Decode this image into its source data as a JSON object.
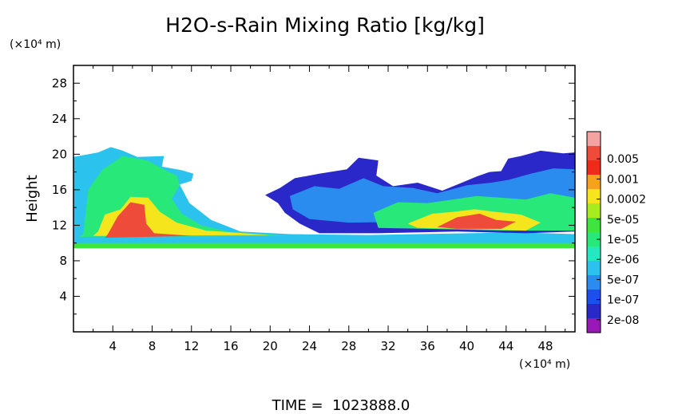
{
  "chart_data": {
    "type": "heatmap",
    "title": "H2O-s-Rain Mixing Ratio [kg/kg]",
    "ylabel": "Height",
    "y_unit": "(×10⁴ m)",
    "x_unit": "(×10⁴ m)",
    "footer": "TIME =  1023888.0",
    "xlim": [
      0,
      51
    ],
    "ylim": [
      0,
      30
    ],
    "x_ticks": [
      4,
      8,
      12,
      16,
      20,
      24,
      28,
      32,
      36,
      40,
      44,
      48
    ],
    "y_ticks": [
      4,
      8,
      12,
      16,
      20,
      24,
      28
    ],
    "colorbar": {
      "labels": [
        "0.005",
        "0.001",
        "0.0002",
        "5e-05",
        "1e-05",
        "2e-06",
        "5e-07",
        "1e-07",
        "2e-08"
      ],
      "colors": [
        "#f4a3a3",
        "#ee4b3b",
        "#f02a18",
        "#f7a21e",
        "#f4e51c",
        "#a8ec1e",
        "#3fe43c",
        "#29e87a",
        "#23e8c0",
        "#2bc3ee",
        "#2a8cee",
        "#1f4ef0",
        "#2a28c8",
        "#9818b8"
      ]
    },
    "regions": [
      {
        "name": "melting-layer-band",
        "level": 6,
        "points": [
          [
            0,
            9.4
          ],
          [
            51,
            9.4
          ],
          [
            51,
            10.8
          ],
          [
            45,
            10.4
          ],
          [
            30,
            10.3
          ],
          [
            15,
            10.5
          ],
          [
            8,
            10.8
          ],
          [
            0,
            10.6
          ]
        ]
      },
      {
        "name": "left-cloud-envelope",
        "level": 9,
        "points": [
          [
            0,
            10
          ],
          [
            0,
            19.7
          ],
          [
            2.5,
            20.2
          ],
          [
            3.8,
            20.8
          ],
          [
            5,
            20.4
          ],
          [
            6.5,
            19.7
          ],
          [
            9.2,
            19.8
          ],
          [
            9,
            18.6
          ],
          [
            11,
            18.2
          ],
          [
            12.2,
            17.8
          ],
          [
            12,
            17
          ],
          [
            10.8,
            16.6
          ],
          [
            11.8,
            14.5
          ],
          [
            14,
            12.6
          ],
          [
            17,
            11.3
          ],
          [
            22,
            11
          ],
          [
            30,
            10.9
          ],
          [
            45,
            11.2
          ],
          [
            51,
            11
          ],
          [
            51,
            10
          ]
        ]
      },
      {
        "name": "left-cloud-green",
        "level": 7,
        "points": [
          [
            1,
            11
          ],
          [
            1.5,
            16
          ],
          [
            3,
            18.3
          ],
          [
            5,
            19.8
          ],
          [
            7.5,
            19.3
          ],
          [
            9,
            18.4
          ],
          [
            10.5,
            17.6
          ],
          [
            10.8,
            16.5
          ],
          [
            10,
            15
          ],
          [
            11,
            13.3
          ],
          [
            13,
            12
          ],
          [
            16,
            11.2
          ],
          [
            22,
            10.8
          ],
          [
            0.5,
            10.7
          ]
        ]
      },
      {
        "name": "left-cloud-yellow",
        "level": 4,
        "points": [
          [
            2.5,
            11.3
          ],
          [
            3.2,
            13.2
          ],
          [
            4.8,
            13.8
          ],
          [
            5.8,
            15.2
          ],
          [
            7.6,
            15.1
          ],
          [
            8.8,
            13.5
          ],
          [
            10.5,
            12.3
          ],
          [
            13.5,
            11.4
          ],
          [
            20,
            10.9
          ],
          [
            2,
            10.8
          ]
        ]
      },
      {
        "name": "left-cloud-core",
        "level": 1,
        "points": [
          [
            3.5,
            11
          ],
          [
            4.5,
            13
          ],
          [
            5.8,
            14.6
          ],
          [
            7.2,
            14.3
          ],
          [
            7.4,
            12.2
          ],
          [
            8.2,
            11.1
          ],
          [
            12,
            10.8
          ],
          [
            3.2,
            10.6
          ]
        ]
      },
      {
        "name": "right-cloud-outer",
        "level": 12,
        "points": [
          [
            19.5,
            15.4
          ],
          [
            21,
            16.2
          ],
          [
            22.5,
            17.3
          ],
          [
            25,
            17.8
          ],
          [
            27.8,
            18.3
          ],
          [
            29,
            19.6
          ],
          [
            31,
            19.3
          ],
          [
            30.8,
            17.6
          ],
          [
            32.5,
            16.4
          ],
          [
            35,
            16.8
          ],
          [
            37.5,
            15.9
          ],
          [
            39.5,
            16.8
          ],
          [
            41,
            17.5
          ],
          [
            42.3,
            18
          ],
          [
            43.5,
            18.1
          ],
          [
            44.2,
            19.5
          ],
          [
            45.5,
            19.8
          ],
          [
            47.5,
            20.4
          ],
          [
            49.8,
            20.1
          ],
          [
            51,
            20.2
          ],
          [
            51,
            11.3
          ],
          [
            46,
            11.1
          ],
          [
            39,
            11.3
          ],
          [
            31,
            11.1
          ],
          [
            25,
            11.1
          ],
          [
            23,
            12.2
          ],
          [
            21.5,
            13.4
          ],
          [
            20.8,
            14.5
          ]
        ]
      },
      {
        "name": "right-cloud-cyan",
        "level": 10,
        "points": [
          [
            22,
            15.3
          ],
          [
            24.5,
            16.4
          ],
          [
            27,
            16.1
          ],
          [
            29.5,
            17.3
          ],
          [
            31.5,
            16.4
          ],
          [
            34.5,
            16.2
          ],
          [
            37,
            15.6
          ],
          [
            40,
            16.5
          ],
          [
            42.5,
            16.8
          ],
          [
            44.2,
            17.1
          ],
          [
            46.5,
            17.8
          ],
          [
            48.8,
            18.4
          ],
          [
            51,
            18.3
          ],
          [
            51,
            11.8
          ],
          [
            42,
            11.9
          ],
          [
            35,
            12.4
          ],
          [
            28,
            12.3
          ],
          [
            24,
            12.7
          ],
          [
            22.3,
            13.8
          ]
        ]
      },
      {
        "name": "right-cloud-green",
        "level": 7,
        "points": [
          [
            30.5,
            13.4
          ],
          [
            33,
            14.6
          ],
          [
            36,
            14.5
          ],
          [
            38.6,
            14.9
          ],
          [
            41,
            15.3
          ],
          [
            43.5,
            15.1
          ],
          [
            46,
            14.9
          ],
          [
            48.5,
            15.6
          ],
          [
            51,
            15.1
          ],
          [
            51,
            11.4
          ],
          [
            44,
            11.4
          ],
          [
            36,
            11.6
          ],
          [
            31,
            11.7
          ]
        ]
      },
      {
        "name": "right-cloud-yellow",
        "level": 4,
        "points": [
          [
            34,
            12.2
          ],
          [
            36.5,
            13.3
          ],
          [
            38.5,
            13.5
          ],
          [
            40.8,
            13.8
          ],
          [
            43,
            13.5
          ],
          [
            45.5,
            13.2
          ],
          [
            47.5,
            12.3
          ],
          [
            46,
            11.4
          ],
          [
            40,
            11.6
          ],
          [
            35,
            11.7
          ]
        ]
      },
      {
        "name": "right-cloud-core",
        "level": 1,
        "points": [
          [
            37,
            11.8
          ],
          [
            39,
            12.9
          ],
          [
            41.3,
            13.3
          ],
          [
            43,
            12.6
          ],
          [
            45,
            12.4
          ],
          [
            43.5,
            11.6
          ],
          [
            39,
            11.6
          ]
        ]
      }
    ]
  }
}
